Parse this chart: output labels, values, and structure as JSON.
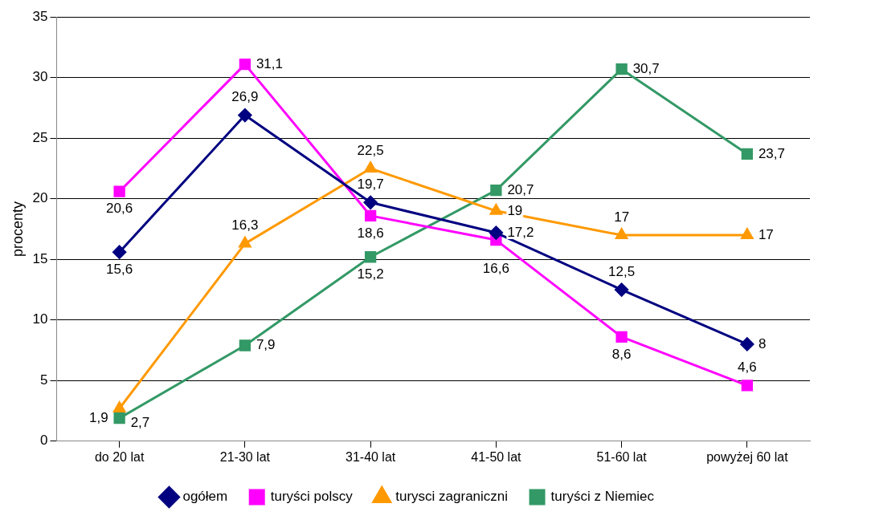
{
  "chart_data": {
    "type": "line",
    "ylabel": "procenty",
    "categories": [
      "do 20 lat",
      "21-30 lat",
      "31-40 lat",
      "41-50 lat",
      "51-60 lat",
      "powyżej 60 lat"
    ],
    "series": [
      {
        "name": "ogółem",
        "color": "#000080",
        "marker": "diamond",
        "values": [
          15.6,
          26.9,
          19.7,
          17.2,
          12.5,
          8
        ],
        "value_labels": [
          "15,6",
          "26,9",
          "19,7",
          "17,2",
          "12,5",
          "8"
        ]
      },
      {
        "name": "turyści polscy",
        "color": "#ff00ff",
        "marker": "square",
        "values": [
          20.6,
          31.1,
          18.6,
          16.6,
          8.6,
          4.6
        ],
        "value_labels": [
          "20,6",
          "31,1",
          "18,6",
          "16,6",
          "8,6",
          "4,6"
        ]
      },
      {
        "name": "turysci zagraniczni",
        "color": "#ff9900",
        "marker": "triangle",
        "values": [
          2.7,
          16.3,
          22.5,
          19,
          17,
          17
        ],
        "value_labels": [
          "2,7",
          "16,3",
          "22,5",
          "19",
          "17",
          "17"
        ]
      },
      {
        "name": "turyści z Niemiec",
        "color": "#339966",
        "marker": "square",
        "values": [
          1.9,
          7.9,
          15.2,
          20.7,
          30.7,
          23.7
        ],
        "value_labels": [
          "1,9",
          "7,9",
          "15,2",
          "20,7",
          "30,7",
          "23,7"
        ]
      }
    ],
    "ylim": [
      0,
      35
    ],
    "yticks": [
      0,
      5,
      10,
      15,
      20,
      25,
      30,
      35
    ],
    "grid": "y",
    "legend": "bottom"
  }
}
